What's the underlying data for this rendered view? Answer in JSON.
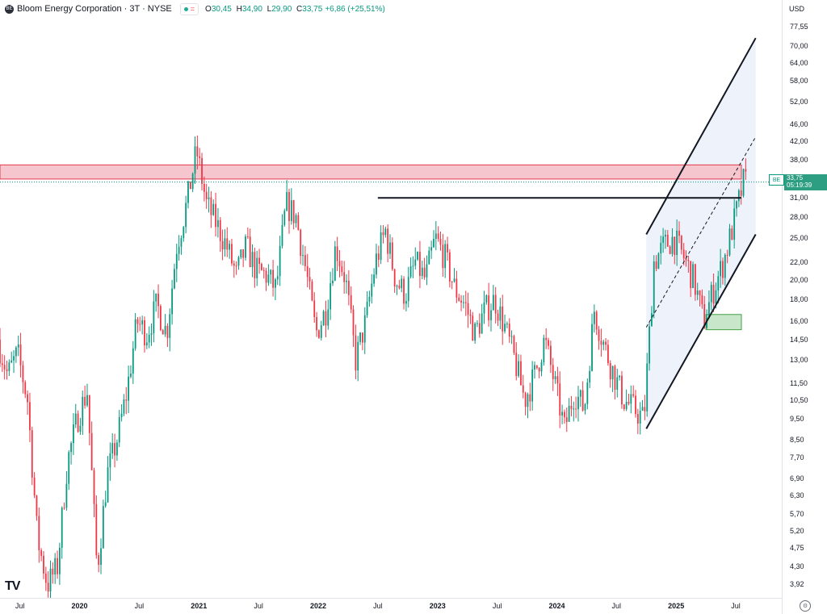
{
  "header": {
    "logo_text": "BE",
    "title": "Bloom Energy Corporation · 3T · NYSE",
    "status_symbol": "=",
    "ohlc": [
      {
        "key": "O",
        "value": "30,45"
      },
      {
        "key": "H",
        "value": "34,90"
      },
      {
        "key": "L",
        "value": "29,90"
      },
      {
        "key": "C",
        "value": "33,75"
      }
    ],
    "change": "+6,86 (+25,51%)"
  },
  "axis": {
    "currency": "USD",
    "y_ticks": [
      "77,55",
      "70,00",
      "64,00",
      "58,00",
      "52,00",
      "46,00",
      "42,00",
      "38,00",
      "31,00",
      "28,00",
      "25,00",
      "22,00",
      "20,00",
      "18,00",
      "16,00",
      "14,50",
      "13,00",
      "11,50",
      "10,50",
      "9,50",
      "8,50",
      "7,70",
      "6,90",
      "6,30",
      "5,70",
      "5,20",
      "4,75",
      "4,30",
      "3,92"
    ],
    "x_ticks": [
      {
        "label": "Jul",
        "year": false
      },
      {
        "label": "2020",
        "year": true
      },
      {
        "label": "Jul",
        "year": false
      },
      {
        "label": "2021",
        "year": true
      },
      {
        "label": "Jul",
        "year": false
      },
      {
        "label": "2022",
        "year": true
      },
      {
        "label": "Jul",
        "year": false
      },
      {
        "label": "2023",
        "year": true
      },
      {
        "label": "Jul",
        "year": false
      },
      {
        "label": "2024",
        "year": true
      },
      {
        "label": "Jul",
        "year": false
      },
      {
        "label": "2025",
        "year": true
      },
      {
        "label": "Jul",
        "year": false
      }
    ]
  },
  "price_label": {
    "ticker": "BE",
    "price": "33,75",
    "countdown": "05:19:39"
  },
  "colors": {
    "up": "#089981",
    "down": "#f23645",
    "resistance_zone": "#f5c6cd",
    "support_zone": "#c8e6c9",
    "channel_fill": "#eef2fb"
  },
  "chart_data": {
    "type": "candlestick",
    "symbol": "BE",
    "timeframe": "3T",
    "y_scale": "log",
    "ylim": [
      3.7,
      80
    ],
    "x_range": [
      "2019-05",
      "2025-10"
    ],
    "last": {
      "open": 30.45,
      "high": 34.9,
      "low": 29.9,
      "close": 33.75
    },
    "price_path": [
      {
        "date": "2019-05",
        "close": 14.5
      },
      {
        "date": "2019-06",
        "close": 12.0
      },
      {
        "date": "2019-07",
        "close": 13.5
      },
      {
        "date": "2019-08",
        "close": 10.5
      },
      {
        "date": "2019-09",
        "close": 5.0
      },
      {
        "date": "2019-10",
        "close": 3.9
      },
      {
        "date": "2019-11",
        "close": 4.3
      },
      {
        "date": "2019-12",
        "close": 7.5
      },
      {
        "date": "2020-01",
        "close": 9.5
      },
      {
        "date": "2020-02",
        "close": 11.0
      },
      {
        "date": "2020-03",
        "close": 4.2
      },
      {
        "date": "2020-04",
        "close": 7.0
      },
      {
        "date": "2020-05",
        "close": 8.5
      },
      {
        "date": "2020-06",
        "close": 11.0
      },
      {
        "date": "2020-07",
        "close": 16.0
      },
      {
        "date": "2020-08",
        "close": 15.0
      },
      {
        "date": "2020-09",
        "close": 17.5
      },
      {
        "date": "2020-10",
        "close": 15.0
      },
      {
        "date": "2020-11",
        "close": 24.0
      },
      {
        "date": "2020-12",
        "close": 30.0
      },
      {
        "date": "2021-01",
        "close": 40.0
      },
      {
        "date": "2021-02",
        "close": 30.0
      },
      {
        "date": "2021-03",
        "close": 27.0
      },
      {
        "date": "2021-04",
        "close": 24.0
      },
      {
        "date": "2021-05",
        "close": 20.5
      },
      {
        "date": "2021-06",
        "close": 24.0
      },
      {
        "date": "2021-07",
        "close": 21.0
      },
      {
        "date": "2021-08",
        "close": 20.5
      },
      {
        "date": "2021-09",
        "close": 19.0
      },
      {
        "date": "2021-10",
        "close": 30.0
      },
      {
        "date": "2021-11",
        "close": 28.0
      },
      {
        "date": "2021-12",
        "close": 21.0
      },
      {
        "date": "2022-01",
        "close": 15.0
      },
      {
        "date": "2022-02",
        "close": 17.0
      },
      {
        "date": "2022-03",
        "close": 24.0
      },
      {
        "date": "2022-04",
        "close": 20.0
      },
      {
        "date": "2022-05",
        "close": 13.0
      },
      {
        "date": "2022-06",
        "close": 16.0
      },
      {
        "date": "2022-07",
        "close": 22.0
      },
      {
        "date": "2022-08",
        "close": 26.0
      },
      {
        "date": "2022-09",
        "close": 20.0
      },
      {
        "date": "2022-10",
        "close": 18.5
      },
      {
        "date": "2022-11",
        "close": 22.0
      },
      {
        "date": "2022-12",
        "close": 20.0
      },
      {
        "date": "2023-01",
        "close": 25.0
      },
      {
        "date": "2023-02",
        "close": 22.5
      },
      {
        "date": "2023-03",
        "close": 19.0
      },
      {
        "date": "2023-04",
        "close": 17.5
      },
      {
        "date": "2023-05",
        "close": 15.0
      },
      {
        "date": "2023-06",
        "close": 17.0
      },
      {
        "date": "2023-07",
        "close": 18.0
      },
      {
        "date": "2023-08",
        "close": 15.5
      },
      {
        "date": "2023-09",
        "close": 13.0
      },
      {
        "date": "2023-10",
        "close": 10.5
      },
      {
        "date": "2023-11",
        "close": 12.0
      },
      {
        "date": "2023-12",
        "close": 14.5
      },
      {
        "date": "2024-01",
        "close": 11.5
      },
      {
        "date": "2024-02",
        "close": 9.0
      },
      {
        "date": "2024-03",
        "close": 11.0
      },
      {
        "date": "2024-04",
        "close": 10.0
      },
      {
        "date": "2024-05",
        "close": 17.0
      },
      {
        "date": "2024-06",
        "close": 14.0
      },
      {
        "date": "2024-07",
        "close": 12.0
      },
      {
        "date": "2024-08",
        "close": 10.5
      },
      {
        "date": "2024-09",
        "close": 10.0
      },
      {
        "date": "2024-10",
        "close": 9.5
      },
      {
        "date": "2024-11",
        "close": 22.0
      },
      {
        "date": "2024-12",
        "close": 24.0
      },
      {
        "date": "2025-01",
        "close": 25.0
      },
      {
        "date": "2025-02",
        "close": 22.5
      },
      {
        "date": "2025-03",
        "close": 20.0
      },
      {
        "date": "2025-04",
        "close": 16.0
      },
      {
        "date": "2025-05",
        "close": 19.0
      },
      {
        "date": "2025-06",
        "close": 22.0
      },
      {
        "date": "2025-07",
        "close": 27.0
      },
      {
        "date": "2025-08",
        "close": 33.75
      }
    ],
    "annotations": {
      "resistance_zone": {
        "from": "2019-05",
        "to": "2025-10",
        "price_low": 34.3,
        "price_high": 37.0
      },
      "horizontal_line": {
        "from": "2022-07",
        "to": "2025-10",
        "price": 31.0
      },
      "support_zone": {
        "from": "2025-04",
        "to": "2025-10",
        "price_low": 15.3,
        "price_high": 16.6
      },
      "channel": {
        "upper": [
          {
            "date": "2024-10",
            "price": 25.5
          },
          {
            "date": "2025-09",
            "price": 73.0
          }
        ],
        "lower": [
          {
            "date": "2024-10",
            "price": 9.0
          },
          {
            "date": "2025-09",
            "price": 25.5
          }
        ],
        "middle": [
          {
            "date": "2024-10",
            "price": 15.5
          },
          {
            "date": "2025-09",
            "price": 43.0
          }
        ]
      }
    }
  }
}
